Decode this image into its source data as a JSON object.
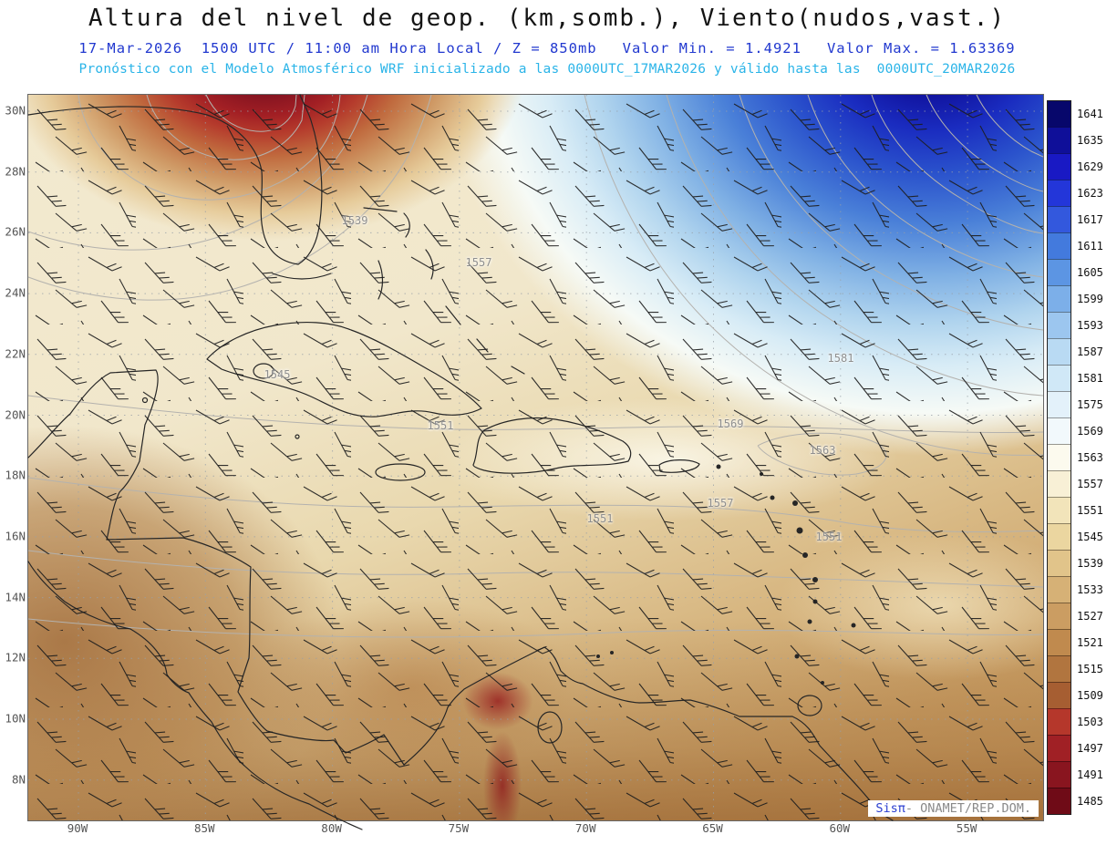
{
  "header": {
    "title": "Altura del nivel de geop. (km,somb.), Viento(nudos,vast.)",
    "datetime": "17-Mar-2026  1500 UTC / 11:00 am Hora Local / Z = 850mb",
    "value_min": "Valor Min. = 1.4921",
    "value_max": "Valor Max. = 1.63369",
    "model_info": "Pronóstico con el Modelo Atmosférico WRF inicializado a las 0000UTC_17MAR2026 y válido hasta las  0000UTC_20MAR2026"
  },
  "axes": {
    "lat_labels": [
      "30N",
      "28N",
      "26N",
      "24N",
      "22N",
      "20N",
      "18N",
      "16N",
      "14N",
      "12N",
      "10N",
      "8N"
    ],
    "lon_labels": [
      "90W",
      "85W",
      "80W",
      "75W",
      "70W",
      "65W",
      "60W",
      "55W"
    ]
  },
  "credit": {
    "brand": "Sisπ",
    "org": "- ONAMET/REP.DOM."
  },
  "chart_data": {
    "type": "heatmap",
    "title": "Altura del nivel de geop. (km,somb.), Viento(nudos,vast.)",
    "level": "850mb",
    "valid": "17-Mar-2026 1500 UTC / 11:00 am Hora Local",
    "model": "WRF inicializado a las 0000UTC_17MAR2026, válido hasta las 0000UTC_20MAR2026",
    "value_min": 1.4921,
    "value_max": 1.63369,
    "x_ticks": [
      "90W",
      "85W",
      "80W",
      "75W",
      "70W",
      "65W",
      "60W",
      "55W"
    ],
    "y_ticks": [
      "30N",
      "28N",
      "26N",
      "24N",
      "22N",
      "20N",
      "18N",
      "16N",
      "14N",
      "12N",
      "10N",
      "8N"
    ],
    "colorbar_levels": [
      1641,
      1635,
      1629,
      1623,
      1617,
      1611,
      1605,
      1599,
      1593,
      1587,
      1581,
      1575,
      1569,
      1563,
      1557,
      1551,
      1545,
      1539,
      1533,
      1527,
      1521,
      1515,
      1509,
      1503,
      1497,
      1491,
      1485
    ],
    "colorbar_colors": [
      "#07076b",
      "#0f0f99",
      "#1919c4",
      "#2336d9",
      "#3358dd",
      "#437add",
      "#5c95e3",
      "#7cafe9",
      "#9cc6ef",
      "#b9daf3",
      "#d0e8f7",
      "#e3f1fa",
      "#f2f9fc",
      "#fcfaee",
      "#f8f0d6",
      "#f2e4ba",
      "#ebd6a0",
      "#e1c48a",
      "#d6b176",
      "#cb9d62",
      "#c08a4e",
      "#b1753f",
      "#a65e32",
      "#b5372b",
      "#a02025",
      "#89151f",
      "#6f0b17"
    ],
    "contour_labels": [
      {
        "text": "1539",
        "x": 358,
        "y": 138
      },
      {
        "text": "1557",
        "x": 494,
        "y": 184
      },
      {
        "text": "1545",
        "x": 273,
        "y": 307
      },
      {
        "text": "1551",
        "x": 452,
        "y": 363
      },
      {
        "text": "1581",
        "x": 891,
        "y": 289
      },
      {
        "text": "1569",
        "x": 770,
        "y": 361
      },
      {
        "text": "1563",
        "x": 871,
        "y": 390
      },
      {
        "text": "1557",
        "x": 759,
        "y": 448
      },
      {
        "text": "1551",
        "x": 627,
        "y": 465
      },
      {
        "text": "1551",
        "x": 878,
        "y": 485
      }
    ],
    "overlays": [
      "barbas de viento (nudos)",
      "líneas de costa",
      "rejilla lat/lon"
    ],
    "features": [
      {
        "type": "low",
        "desc": "Mínimo de altura (tonos rojos) al norte, sobre el Golfo de México / sureste de EE.UU."
      },
      {
        "type": "high",
        "desc": "Máximo de altura (tonos azules) al noreste, sobre el Atlántico occidental"
      },
      {
        "type": "shading",
        "desc": "Tonos marrones (alturas bajas) sobre Centroamérica y el norte de Suramérica"
      }
    ]
  }
}
